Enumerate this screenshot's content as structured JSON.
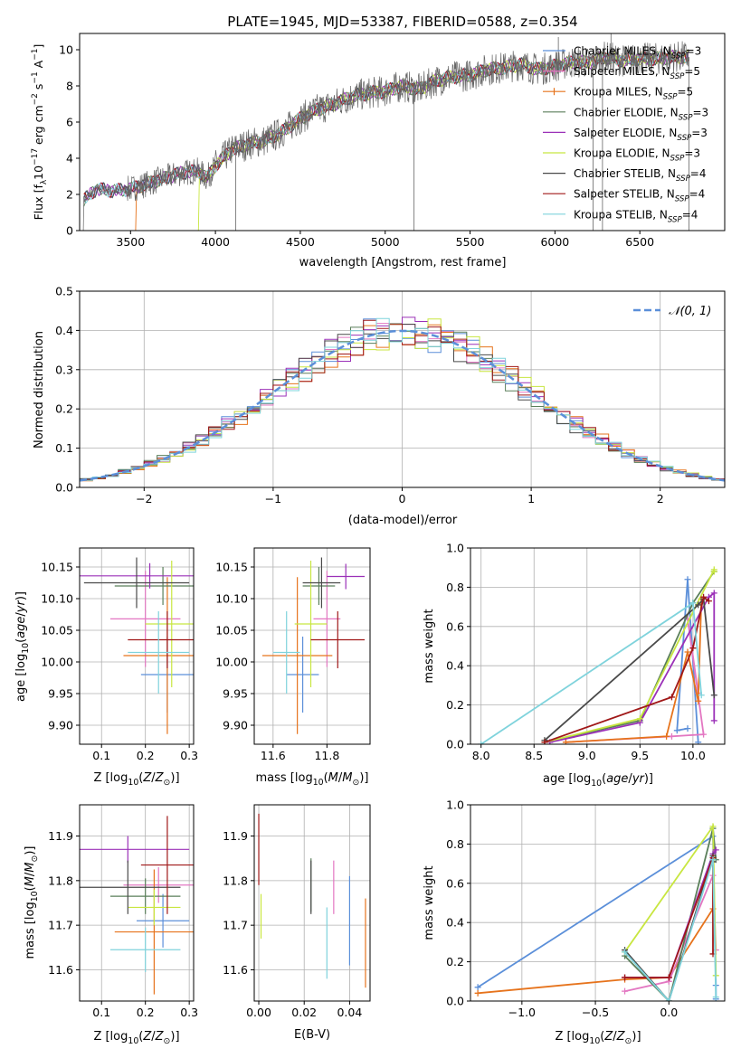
{
  "figure": {
    "title": "PLATE=1945, MJD=53387, FIBERID=0588, z=0.354"
  },
  "models": [
    {
      "name": "Chabrier MILES",
      "nssp": "3",
      "color": "#5b8fd9"
    },
    {
      "name": "Salpeter MILES",
      "nssp": "5",
      "color": "#e377c2"
    },
    {
      "name": "Kroupa MILES",
      "nssp": "5",
      "color": "#e6731c"
    },
    {
      "name": "Chabrier ELODIE",
      "nssp": "3",
      "color": "#5a7f5a"
    },
    {
      "name": "Salpeter ELODIE",
      "nssp": "3",
      "color": "#9b30b8"
    },
    {
      "name": "Kroupa ELODIE",
      "nssp": "3",
      "color": "#c8e640"
    },
    {
      "name": "Chabrier STELIB",
      "nssp": "4",
      "color": "#4a4a4a"
    },
    {
      "name": "Salpeter STELIB",
      "nssp": "4",
      "color": "#a01818"
    },
    {
      "name": "Kroupa STELIB",
      "nssp": "4",
      "color": "#7fd3dc"
    }
  ],
  "chart_data": [
    {
      "id": "spectrum",
      "type": "line",
      "xlabel": "wavelength [Angstrom, rest frame]",
      "ylabel": "Flux [f_λ 10^-17 erg cm^-2 s^-1 A^-1]",
      "xlim": [
        3200,
        7000
      ],
      "ylim": [
        0,
        10.9
      ],
      "xticks": [
        3500,
        4000,
        4500,
        5000,
        5500,
        6000,
        6500
      ],
      "yticks": [
        0,
        2,
        4,
        6,
        8,
        10
      ],
      "continuum": [
        [
          3220,
          0
        ],
        [
          3225,
          1.7
        ],
        [
          3300,
          2.3
        ],
        [
          3400,
          2.2
        ],
        [
          3500,
          2.3
        ],
        [
          3600,
          2.6
        ],
        [
          3700,
          2.9
        ],
        [
          3800,
          3.2
        ],
        [
          3900,
          3.3
        ],
        [
          3950,
          2.9
        ],
        [
          4000,
          3.6
        ],
        [
          4100,
          4.5
        ],
        [
          4200,
          4.8
        ],
        [
          4300,
          5.0
        ],
        [
          4400,
          5.5
        ],
        [
          4500,
          6.2
        ],
        [
          4600,
          6.7
        ],
        [
          4700,
          7.0
        ],
        [
          4800,
          7.4
        ],
        [
          4900,
          7.6
        ],
        [
          5000,
          7.7
        ],
        [
          5100,
          8.0
        ],
        [
          5200,
          7.8
        ],
        [
          5300,
          8.3
        ],
        [
          5400,
          8.5
        ],
        [
          5500,
          8.6
        ],
        [
          5600,
          8.9
        ],
        [
          5700,
          9.0
        ],
        [
          5800,
          9.2
        ],
        [
          5900,
          8.9
        ],
        [
          6000,
          9.1
        ],
        [
          6100,
          9.3
        ],
        [
          6200,
          9.3
        ],
        [
          6300,
          9.6
        ],
        [
          6400,
          9.4
        ],
        [
          6500,
          9.5
        ],
        [
          6600,
          9.5
        ],
        [
          6700,
          9.6
        ],
        [
          6790,
          9.6
        ]
      ],
      "spikes": [
        [
          4120,
          0
        ],
        [
          5170,
          0
        ],
        [
          6225,
          0
        ],
        [
          6280,
          0
        ],
        [
          6790,
          0
        ],
        [
          6020,
          10.7
        ],
        [
          6330,
          11.0
        ]
      ]
    },
    {
      "id": "residuals",
      "type": "line",
      "xlabel": "(data-model)/error",
      "ylabel": "Normed distribution",
      "xlim": [
        -2.5,
        2.5
      ],
      "ylim": [
        0,
        0.5
      ],
      "xticks": [
        -2,
        -1,
        0,
        1,
        2
      ],
      "yticks": [
        0.0,
        0.1,
        0.2,
        0.3,
        0.4,
        0.5
      ],
      "normal_label": "𝒩(0, 1)",
      "normal_color": "#5b8fd9"
    },
    {
      "id": "age_vs_Z",
      "type": "scatter",
      "xlabel": "Z [log10(Z/Z⊙)]",
      "ylabel": "age  [log10(age/yr)]",
      "xlim": [
        0.05,
        0.31
      ],
      "ylim": [
        9.87,
        10.18
      ],
      "xticks": [
        0.1,
        0.2,
        0.3
      ],
      "yticks": [
        9.9,
        9.95,
        10.0,
        10.05,
        10.1,
        10.15
      ],
      "points": [
        {
          "model": 0,
          "x": 0.25,
          "xerr": 0.06,
          "y": 9.98,
          "yerr": 0.06
        },
        {
          "model": 1,
          "x": 0.2,
          "xerr": 0.08,
          "y": 10.068,
          "yerr": 0.076
        },
        {
          "model": 2,
          "x": 0.25,
          "xerr": 0.1,
          "y": 10.01,
          "yerr": 0.124
        },
        {
          "model": 3,
          "x": 0.24,
          "xerr": 0.11,
          "y": 10.12,
          "yerr": 0.03
        },
        {
          "model": 4,
          "x": 0.21,
          "xerr": 0.17,
          "y": 10.136,
          "yerr": 0.02
        },
        {
          "model": 5,
          "x": 0.26,
          "xerr": 0.06,
          "y": 10.06,
          "yerr": 0.1
        },
        {
          "model": 6,
          "x": 0.18,
          "xerr": 0.12,
          "y": 10.125,
          "yerr": 0.04
        },
        {
          "model": 7,
          "x": 0.25,
          "xerr": 0.09,
          "y": 10.035,
          "yerr": 0.045
        },
        {
          "model": 8,
          "x": 0.23,
          "xerr": 0.07,
          "y": 10.015,
          "yerr": 0.065
        }
      ]
    },
    {
      "id": "age_vs_mass",
      "type": "scatter",
      "xlabel": "mass [log10(M/M⊙)]",
      "ylabel": "",
      "xlim": [
        11.53,
        11.96
      ],
      "ylim": [
        9.87,
        10.18
      ],
      "xticks": [
        11.6,
        11.8
      ],
      "yticks": [
        9.9,
        9.95,
        10.0,
        10.05,
        10.1,
        10.15
      ],
      "points": [
        {
          "model": 0,
          "x": 11.71,
          "xerr": 0.06,
          "y": 9.98,
          "yerr": 0.06
        },
        {
          "model": 1,
          "x": 11.8,
          "xerr": 0.05,
          "y": 10.068,
          "yerr": 0.076
        },
        {
          "model": 2,
          "x": 11.69,
          "xerr": 0.13,
          "y": 10.01,
          "yerr": 0.124
        },
        {
          "model": 3,
          "x": 11.77,
          "xerr": 0.06,
          "y": 10.12,
          "yerr": 0.03
        },
        {
          "model": 4,
          "x": 11.87,
          "xerr": 0.07,
          "y": 10.135,
          "yerr": 0.02
        },
        {
          "model": 5,
          "x": 11.74,
          "xerr": 0.06,
          "y": 10.06,
          "yerr": 0.1
        },
        {
          "model": 6,
          "x": 11.78,
          "xerr": 0.07,
          "y": 10.125,
          "yerr": 0.04
        },
        {
          "model": 7,
          "x": 11.84,
          "xerr": 0.1,
          "y": 10.035,
          "yerr": 0.045
        },
        {
          "model": 8,
          "x": 11.65,
          "xerr": 0.05,
          "y": 10.015,
          "yerr": 0.065
        }
      ]
    },
    {
      "id": "weight_vs_age",
      "type": "line",
      "xlabel": "age  [log10(age/yr)]",
      "ylabel": "mass weight",
      "xlim": [
        7.9,
        10.3
      ],
      "ylim": [
        0,
        1.0
      ],
      "xticks": [
        8.0,
        8.5,
        9.0,
        9.5,
        10.0
      ],
      "yticks": [
        0.0,
        0.2,
        0.4,
        0.6,
        0.8,
        1.0
      ],
      "series": [
        {
          "model": 0,
          "x": [
            10.05,
            9.95,
            9.85,
            9.95
          ],
          "y": [
            0.01,
            0.84,
            0.07,
            0.08
          ]
        },
        {
          "model": 1,
          "x": [
            8.8,
            9.8,
            10.1,
            9.95,
            10.05
          ],
          "y": [
            0.01,
            0.04,
            0.05,
            0.64,
            0.26
          ]
        },
        {
          "model": 2,
          "x": [
            8.8,
            9.75,
            9.95,
            10.05,
            10.08
          ],
          "y": [
            0.01,
            0.04,
            0.47,
            0.22,
            0.74
          ]
        },
        {
          "model": 3,
          "x": [
            8.6,
            9.5,
            10.0,
            10.2
          ],
          "y": [
            0.01,
            0.12,
            0.72,
            0.88
          ]
        },
        {
          "model": 4,
          "x": [
            8.65,
            9.5,
            10.15,
            10.2,
            10.2
          ],
          "y": [
            0.01,
            0.11,
            0.75,
            0.77,
            0.12
          ]
        },
        {
          "model": 5,
          "x": [
            8.6,
            9.5,
            10.2,
            10.2
          ],
          "y": [
            0.01,
            0.13,
            0.89,
            0.88
          ]
        },
        {
          "model": 6,
          "x": [
            8.6,
            10.05,
            10.1,
            10.2
          ],
          "y": [
            0.02,
            0.71,
            0.74,
            0.25
          ]
        },
        {
          "model": 7,
          "x": [
            8.6,
            9.8,
            10.0,
            10.1,
            10.15
          ],
          "y": [
            0.01,
            0.24,
            0.49,
            0.75,
            0.73
          ]
        },
        {
          "model": 8,
          "x": [
            8.0,
            10.0,
            10.08
          ],
          "y": [
            0.0,
            0.72,
            0.25
          ]
        }
      ]
    },
    {
      "id": "mass_vs_Z",
      "type": "scatter",
      "xlabel": "Z [log10(Z/Z⊙)]",
      "ylabel": "mass [log10(M/M⊙)]",
      "xlim": [
        0.05,
        0.31
      ],
      "ylim": [
        11.53,
        11.97
      ],
      "xticks": [
        0.1,
        0.2,
        0.3
      ],
      "yticks": [
        11.6,
        11.7,
        11.8,
        11.9
      ],
      "points": [
        {
          "model": 0,
          "x": 0.24,
          "xerr": 0.06,
          "y": 11.71,
          "yerr": 0.06
        },
        {
          "model": 1,
          "x": 0.23,
          "xerr": 0.08,
          "y": 11.79,
          "yerr": 0.04
        },
        {
          "model": 2,
          "x": 0.22,
          "xerr": 0.09,
          "y": 11.685,
          "yerr": 0.14
        },
        {
          "model": 3,
          "x": 0.2,
          "xerr": 0.08,
          "y": 11.765,
          "yerr": 0.04
        },
        {
          "model": 4,
          "x": 0.16,
          "xerr": 0.14,
          "y": 11.87,
          "yerr": 0.03
        },
        {
          "model": 5,
          "x": 0.22,
          "xerr": 0.06,
          "y": 11.74,
          "yerr": 0.04
        },
        {
          "model": 6,
          "x": 0.16,
          "xerr": 0.12,
          "y": 11.785,
          "yerr": 0.06
        },
        {
          "model": 7,
          "x": 0.25,
          "xerr": 0.06,
          "y": 11.835,
          "yerr": 0.11
        },
        {
          "model": 8,
          "x": 0.2,
          "xerr": 0.08,
          "y": 11.645,
          "yerr": 0.05
        }
      ]
    },
    {
      "id": "mass_vs_ebv",
      "type": "scatter",
      "xlabel": "E(B-V)",
      "ylabel": "",
      "xlim": [
        -0.002,
        0.049
      ],
      "ylim": [
        11.53,
        11.97
      ],
      "xticks": [
        0.0,
        0.02,
        0.04
      ],
      "yticks": [
        11.6,
        11.7,
        11.8,
        11.9
      ],
      "points": [
        {
          "model": 0,
          "x": 0.04,
          "y": 11.71,
          "yerr": 0.1
        },
        {
          "model": 1,
          "x": 0.033,
          "y": 11.785,
          "yerr": 0.06
        },
        {
          "model": 2,
          "x": 0.047,
          "y": 11.66,
          "yerr": 0.1
        },
        {
          "model": 3,
          "x": 0.023,
          "y": 11.79,
          "yerr": 0.06
        },
        {
          "model": 5,
          "x": 0.001,
          "y": 11.72,
          "yerr": 0.05
        },
        {
          "model": 6,
          "x": 0.023,
          "y": 11.785,
          "yerr": 0.06
        },
        {
          "model": 7,
          "x": 0.0,
          "y": 11.87,
          "yerr": 0.08
        },
        {
          "model": 8,
          "x": 0.03,
          "y": 11.66,
          "yerr": 0.08
        }
      ]
    },
    {
      "id": "weight_vs_Z",
      "type": "line",
      "xlabel": "Z [log10(Z/Z⊙)]",
      "ylabel": "mass weight",
      "xlim": [
        -1.35,
        0.38
      ],
      "ylim": [
        0,
        1.0
      ],
      "xticks": [
        -1.0,
        -0.5,
        0.0
      ],
      "yticks": [
        0.0,
        0.2,
        0.4,
        0.6,
        0.8,
        1.0
      ],
      "series": [
        {
          "model": 0,
          "x": [
            -1.3,
            0.3,
            0.32,
            0.32
          ],
          "y": [
            0.07,
            0.84,
            0.08,
            0.01
          ]
        },
        {
          "model": 2,
          "x": [
            -1.3,
            -0.3,
            0.0,
            0.3
          ],
          "y": [
            0.04,
            0.11,
            0.12,
            0.47
          ]
        },
        {
          "model": 1,
          "x": [
            -0.3,
            0.0,
            0.3,
            0.32
          ],
          "y": [
            0.05,
            0.1,
            0.64,
            0.26
          ]
        },
        {
          "model": 3,
          "x": [
            -0.3,
            0.0,
            0.3,
            0.32
          ],
          "y": [
            0.23,
            0.0,
            0.88,
            0.72
          ]
        },
        {
          "model": 5,
          "x": [
            -0.3,
            0.3,
            0.32
          ],
          "y": [
            0.25,
            0.89,
            0.13
          ]
        },
        {
          "model": 4,
          "x": [
            -0.3,
            0.0,
            0.3,
            0.32
          ],
          "y": [
            0.12,
            0.12,
            0.75,
            0.77
          ]
        },
        {
          "model": 6,
          "x": [
            -0.3,
            0.0,
            0.3,
            0.3
          ],
          "y": [
            0.26,
            0.0,
            0.74,
            0.71
          ]
        },
        {
          "model": 7,
          "x": [
            -0.3,
            0.0,
            0.3,
            0.3
          ],
          "y": [
            0.12,
            0.12,
            0.73,
            0.24
          ]
        },
        {
          "model": 8,
          "x": [
            -0.3,
            0.0,
            0.3,
            0.32
          ],
          "y": [
            0.25,
            0.0,
            0.72,
            0.02
          ]
        }
      ]
    }
  ]
}
